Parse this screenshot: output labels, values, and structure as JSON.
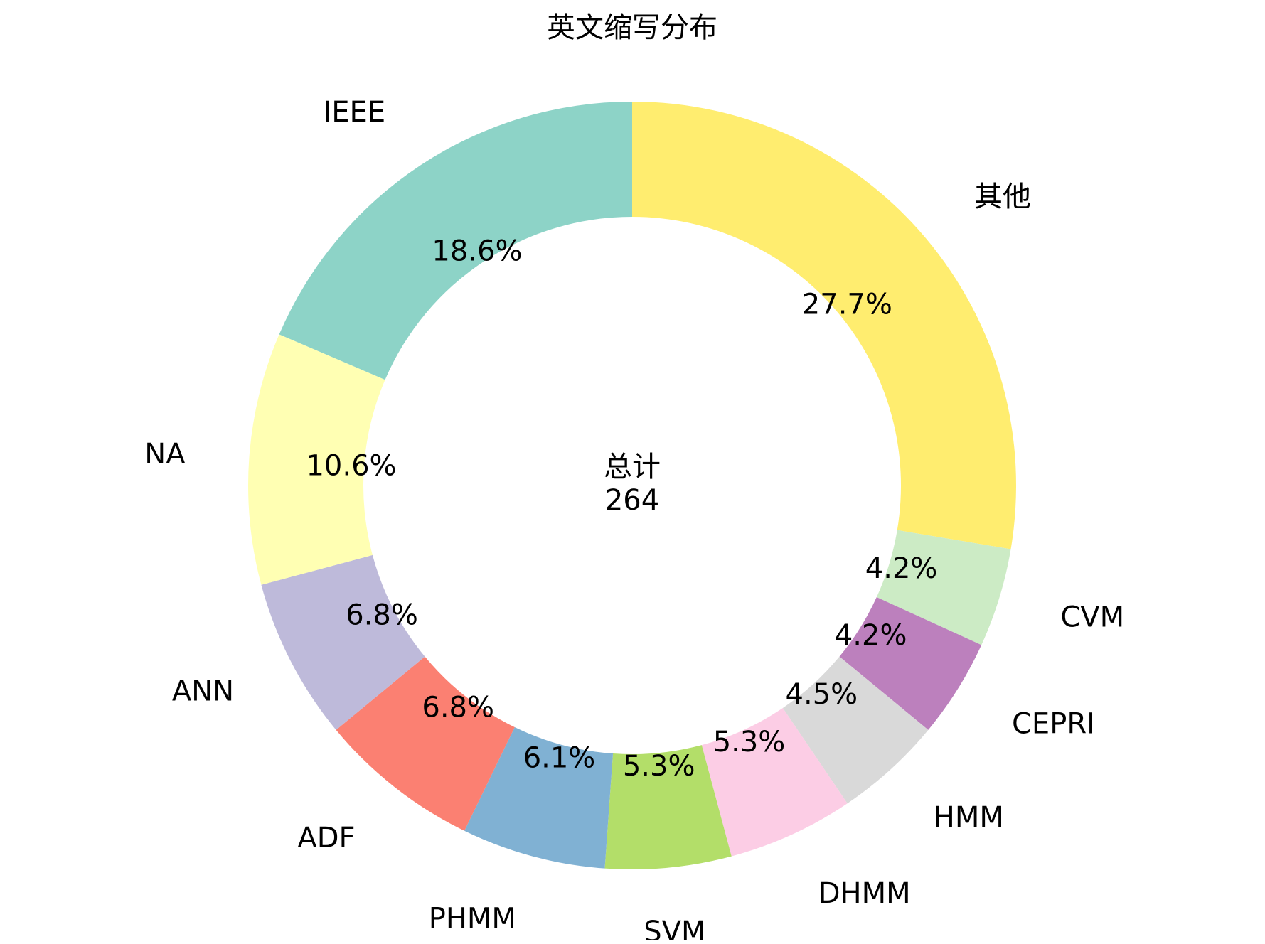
{
  "chart_data": {
    "type": "pie",
    "variant": "donut",
    "title": "英文缩写分布",
    "center_caption": "总计",
    "center_total": "264",
    "start_angle_deg": 90,
    "direction": "clockwise",
    "slices": [
      {
        "label": "其他",
        "value": 73,
        "percent_label": "27.7%",
        "color": "#ffed6f"
      },
      {
        "label": "CVM",
        "value": 11,
        "percent_label": "4.2%",
        "color": "#ccebc5"
      },
      {
        "label": "CEPRI",
        "value": 11,
        "percent_label": "4.2%",
        "color": "#bc80bd"
      },
      {
        "label": "HMM",
        "value": 12,
        "percent_label": "4.5%",
        "color": "#d9d9d9"
      },
      {
        "label": "DHMM",
        "value": 14,
        "percent_label": "5.3%",
        "color": "#fccde5"
      },
      {
        "label": "SVM",
        "value": 14,
        "percent_label": "5.3%",
        "color": "#b3de69"
      },
      {
        "label": "PHMM",
        "value": 16,
        "percent_label": "6.1%",
        "color": "#80b1d3"
      },
      {
        "label": "ADF",
        "value": 18,
        "percent_label": "6.8%",
        "color": "#fb8072"
      },
      {
        "label": "ANN",
        "value": 18,
        "percent_label": "6.8%",
        "color": "#bebada"
      },
      {
        "label": "NA",
        "value": 28,
        "percent_label": "10.6%",
        "color": "#ffffb3"
      },
      {
        "label": "IEEE",
        "value": 49,
        "percent_label": "18.6%",
        "color": "#8dd3c7"
      }
    ]
  }
}
